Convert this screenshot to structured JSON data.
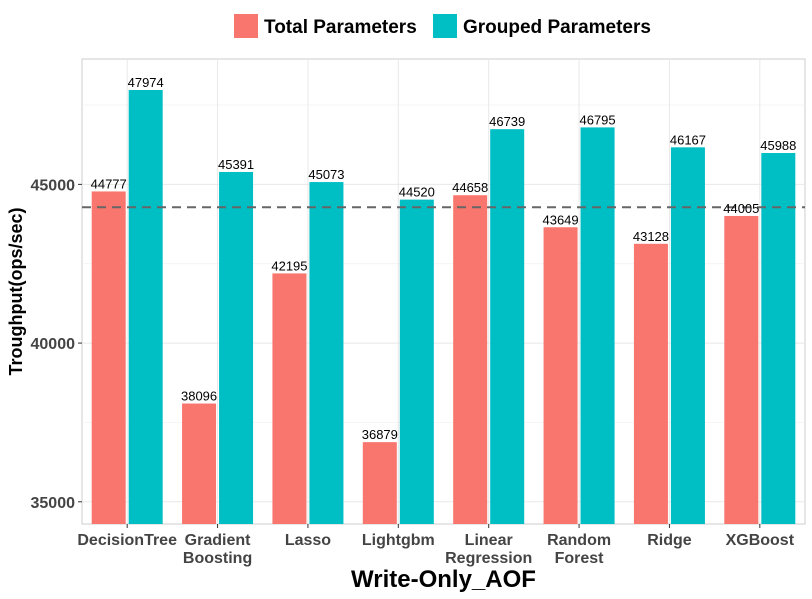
{
  "chart_data": {
    "type": "bar",
    "xlabel": "Write-Only_AOF",
    "ylabel": "Troughput(ops/sec)",
    "categories": [
      [
        "DecisionTree"
      ],
      [
        "Gradient",
        "Boosting"
      ],
      [
        "Lasso"
      ],
      [
        "Lightgbm"
      ],
      [
        "Linear",
        "Regression"
      ],
      [
        "Random",
        "Forest"
      ],
      [
        "Ridge"
      ],
      [
        "XGBoost"
      ]
    ],
    "series": [
      {
        "name": "Total Parameters",
        "color": "#F8766D",
        "values": [
          44777,
          38096,
          42195,
          36879,
          44658,
          43649,
          43128,
          44005
        ]
      },
      {
        "name": "Grouped Parameters",
        "color": "#00BFC4",
        "values": [
          47974,
          45391,
          45073,
          44520,
          46739,
          46795,
          46167,
          45988
        ]
      }
    ],
    "ylim": [
      34300,
      48950
    ],
    "yticks": [
      35000,
      40000,
      45000
    ],
    "reference_line": 44280,
    "grid": true,
    "legend_position": "top"
  }
}
